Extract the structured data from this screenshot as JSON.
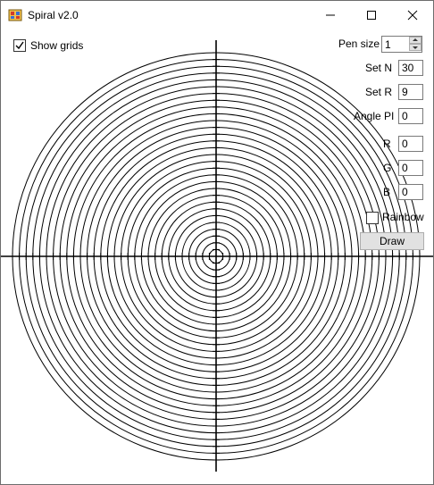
{
  "window": {
    "title": "Spiral v2.0"
  },
  "titlebar": {
    "icons": {
      "app": "app-icon",
      "minimize": "minimize-icon",
      "maximize": "maximize-icon",
      "close": "close-icon"
    }
  },
  "options": {
    "show_grids": {
      "label": "Show grids",
      "checked": true
    },
    "rainbow": {
      "label": "Rainbow",
      "checked": false
    }
  },
  "controls": {
    "pen_size": {
      "label": "Pen size",
      "value": "1"
    },
    "set_n": {
      "label": "Set N",
      "value": "30"
    },
    "set_r": {
      "label": "Set R",
      "value": "9"
    },
    "angle_pi": {
      "label": "Angle PI",
      "value": "0"
    },
    "r": {
      "label": "R",
      "value": "0"
    },
    "g": {
      "label": "G",
      "value": "0"
    },
    "b": {
      "label": "B",
      "value": "0"
    },
    "draw_label": "Draw"
  },
  "drawing": {
    "circle_count": 30,
    "radius_step": 7.6,
    "color": "#000000",
    "grid_color": "#000000"
  }
}
